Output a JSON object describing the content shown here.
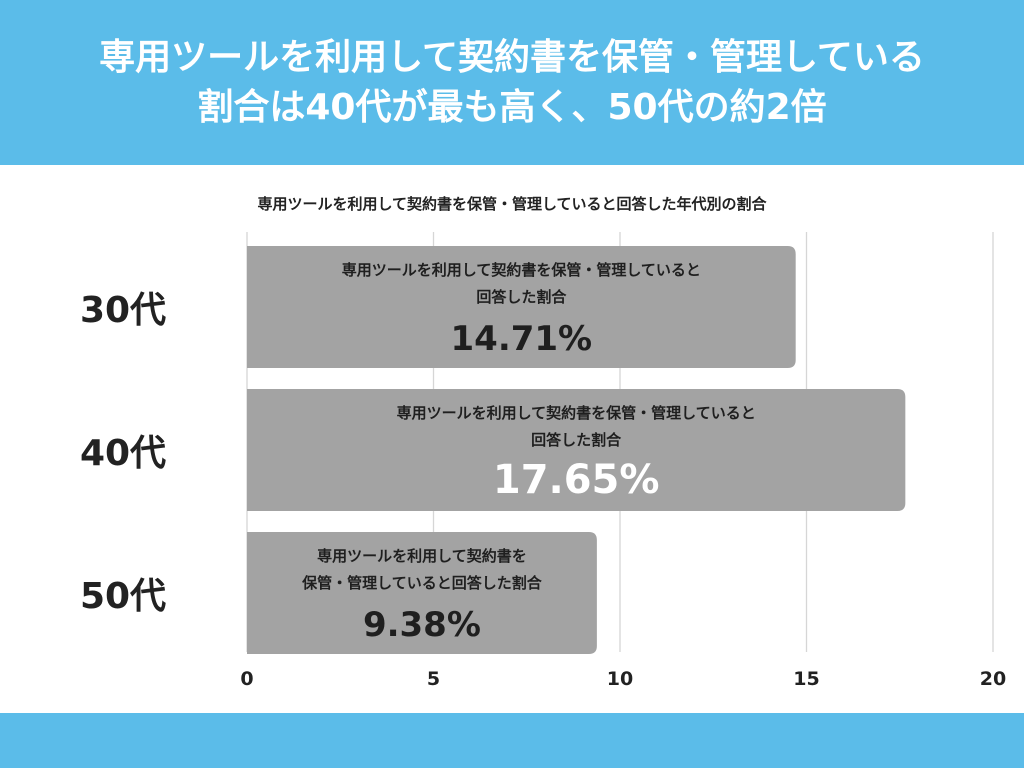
{
  "header": {
    "line1": "専用ツールを利用して契約書を保管・管理している",
    "line2": "割合は40代が最も高く、50代の約2倍"
  },
  "chart_data": {
    "type": "bar",
    "orientation": "horizontal",
    "title": "専用ツールを利用して契約書を保管・管理していると回答した年代別の割合",
    "categories": [
      "30代",
      "40代",
      "50代"
    ],
    "values": [
      14.71,
      17.65,
      9.38
    ],
    "value_labels": [
      "14.71%",
      "17.65%",
      "9.38%"
    ],
    "bar_text": [
      [
        "専用ツールを利用して契約書を保管・管理していると",
        "回答した割合"
      ],
      [
        "専用ツールを利用して契約書を保管・管理していると",
        "回答した割合"
      ],
      [
        "専用ツールを利用して契約書を",
        "保管・管理していると回答した割合"
      ]
    ],
    "xlim": [
      0,
      20
    ],
    "xticks": [
      0,
      5,
      10,
      15,
      20
    ],
    "grid": true,
    "legend": "none"
  },
  "colors": {
    "accent": "#5bbce9",
    "bar": "#a3a3a3",
    "bar_text": "#1f1f1f",
    "grid": "#d6d6d6",
    "text": "#222222"
  }
}
